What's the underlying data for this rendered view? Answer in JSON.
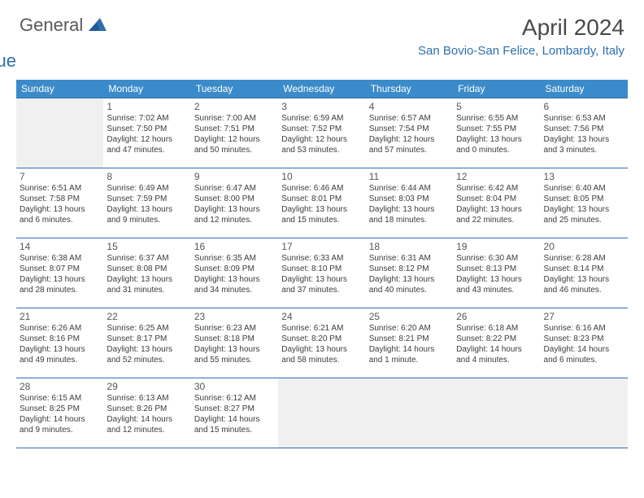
{
  "logo": {
    "word1": "General",
    "word2": "Blue"
  },
  "title": "April 2024",
  "location": "San Bovio-San Felice, Lombardy, Italy",
  "colors": {
    "header_bg": "#3b8bca",
    "brand_dark": "#58595b",
    "brand_blue": "#2f6fae",
    "border": "#2f6fae",
    "empty_bg": "#f0f0f0",
    "text": "#3c3c3c"
  },
  "day_headers": [
    "Sunday",
    "Monday",
    "Tuesday",
    "Wednesday",
    "Thursday",
    "Friday",
    "Saturday"
  ],
  "weeks": [
    [
      null,
      {
        "n": "1",
        "sr": "7:02 AM",
        "ss": "7:50 PM",
        "dl": "12 hours and 47 minutes."
      },
      {
        "n": "2",
        "sr": "7:00 AM",
        "ss": "7:51 PM",
        "dl": "12 hours and 50 minutes."
      },
      {
        "n": "3",
        "sr": "6:59 AM",
        "ss": "7:52 PM",
        "dl": "12 hours and 53 minutes."
      },
      {
        "n": "4",
        "sr": "6:57 AM",
        "ss": "7:54 PM",
        "dl": "12 hours and 57 minutes."
      },
      {
        "n": "5",
        "sr": "6:55 AM",
        "ss": "7:55 PM",
        "dl": "13 hours and 0 minutes."
      },
      {
        "n": "6",
        "sr": "6:53 AM",
        "ss": "7:56 PM",
        "dl": "13 hours and 3 minutes."
      }
    ],
    [
      {
        "n": "7",
        "sr": "6:51 AM",
        "ss": "7:58 PM",
        "dl": "13 hours and 6 minutes."
      },
      {
        "n": "8",
        "sr": "6:49 AM",
        "ss": "7:59 PM",
        "dl": "13 hours and 9 minutes."
      },
      {
        "n": "9",
        "sr": "6:47 AM",
        "ss": "8:00 PM",
        "dl": "13 hours and 12 minutes."
      },
      {
        "n": "10",
        "sr": "6:46 AM",
        "ss": "8:01 PM",
        "dl": "13 hours and 15 minutes."
      },
      {
        "n": "11",
        "sr": "6:44 AM",
        "ss": "8:03 PM",
        "dl": "13 hours and 18 minutes."
      },
      {
        "n": "12",
        "sr": "6:42 AM",
        "ss": "8:04 PM",
        "dl": "13 hours and 22 minutes."
      },
      {
        "n": "13",
        "sr": "6:40 AM",
        "ss": "8:05 PM",
        "dl": "13 hours and 25 minutes."
      }
    ],
    [
      {
        "n": "14",
        "sr": "6:38 AM",
        "ss": "8:07 PM",
        "dl": "13 hours and 28 minutes."
      },
      {
        "n": "15",
        "sr": "6:37 AM",
        "ss": "8:08 PM",
        "dl": "13 hours and 31 minutes."
      },
      {
        "n": "16",
        "sr": "6:35 AM",
        "ss": "8:09 PM",
        "dl": "13 hours and 34 minutes."
      },
      {
        "n": "17",
        "sr": "6:33 AM",
        "ss": "8:10 PM",
        "dl": "13 hours and 37 minutes."
      },
      {
        "n": "18",
        "sr": "6:31 AM",
        "ss": "8:12 PM",
        "dl": "13 hours and 40 minutes."
      },
      {
        "n": "19",
        "sr": "6:30 AM",
        "ss": "8:13 PM",
        "dl": "13 hours and 43 minutes."
      },
      {
        "n": "20",
        "sr": "6:28 AM",
        "ss": "8:14 PM",
        "dl": "13 hours and 46 minutes."
      }
    ],
    [
      {
        "n": "21",
        "sr": "6:26 AM",
        "ss": "8:16 PM",
        "dl": "13 hours and 49 minutes."
      },
      {
        "n": "22",
        "sr": "6:25 AM",
        "ss": "8:17 PM",
        "dl": "13 hours and 52 minutes."
      },
      {
        "n": "23",
        "sr": "6:23 AM",
        "ss": "8:18 PM",
        "dl": "13 hours and 55 minutes."
      },
      {
        "n": "24",
        "sr": "6:21 AM",
        "ss": "8:20 PM",
        "dl": "13 hours and 58 minutes."
      },
      {
        "n": "25",
        "sr": "6:20 AM",
        "ss": "8:21 PM",
        "dl": "14 hours and 1 minute."
      },
      {
        "n": "26",
        "sr": "6:18 AM",
        "ss": "8:22 PM",
        "dl": "14 hours and 4 minutes."
      },
      {
        "n": "27",
        "sr": "6:16 AM",
        "ss": "8:23 PM",
        "dl": "14 hours and 6 minutes."
      }
    ],
    [
      {
        "n": "28",
        "sr": "6:15 AM",
        "ss": "8:25 PM",
        "dl": "14 hours and 9 minutes."
      },
      {
        "n": "29",
        "sr": "6:13 AM",
        "ss": "8:26 PM",
        "dl": "14 hours and 12 minutes."
      },
      {
        "n": "30",
        "sr": "6:12 AM",
        "ss": "8:27 PM",
        "dl": "14 hours and 15 minutes."
      },
      null,
      null,
      null,
      null
    ]
  ],
  "labels": {
    "sunrise": "Sunrise:",
    "sunset": "Sunset:",
    "daylight": "Daylight:"
  }
}
